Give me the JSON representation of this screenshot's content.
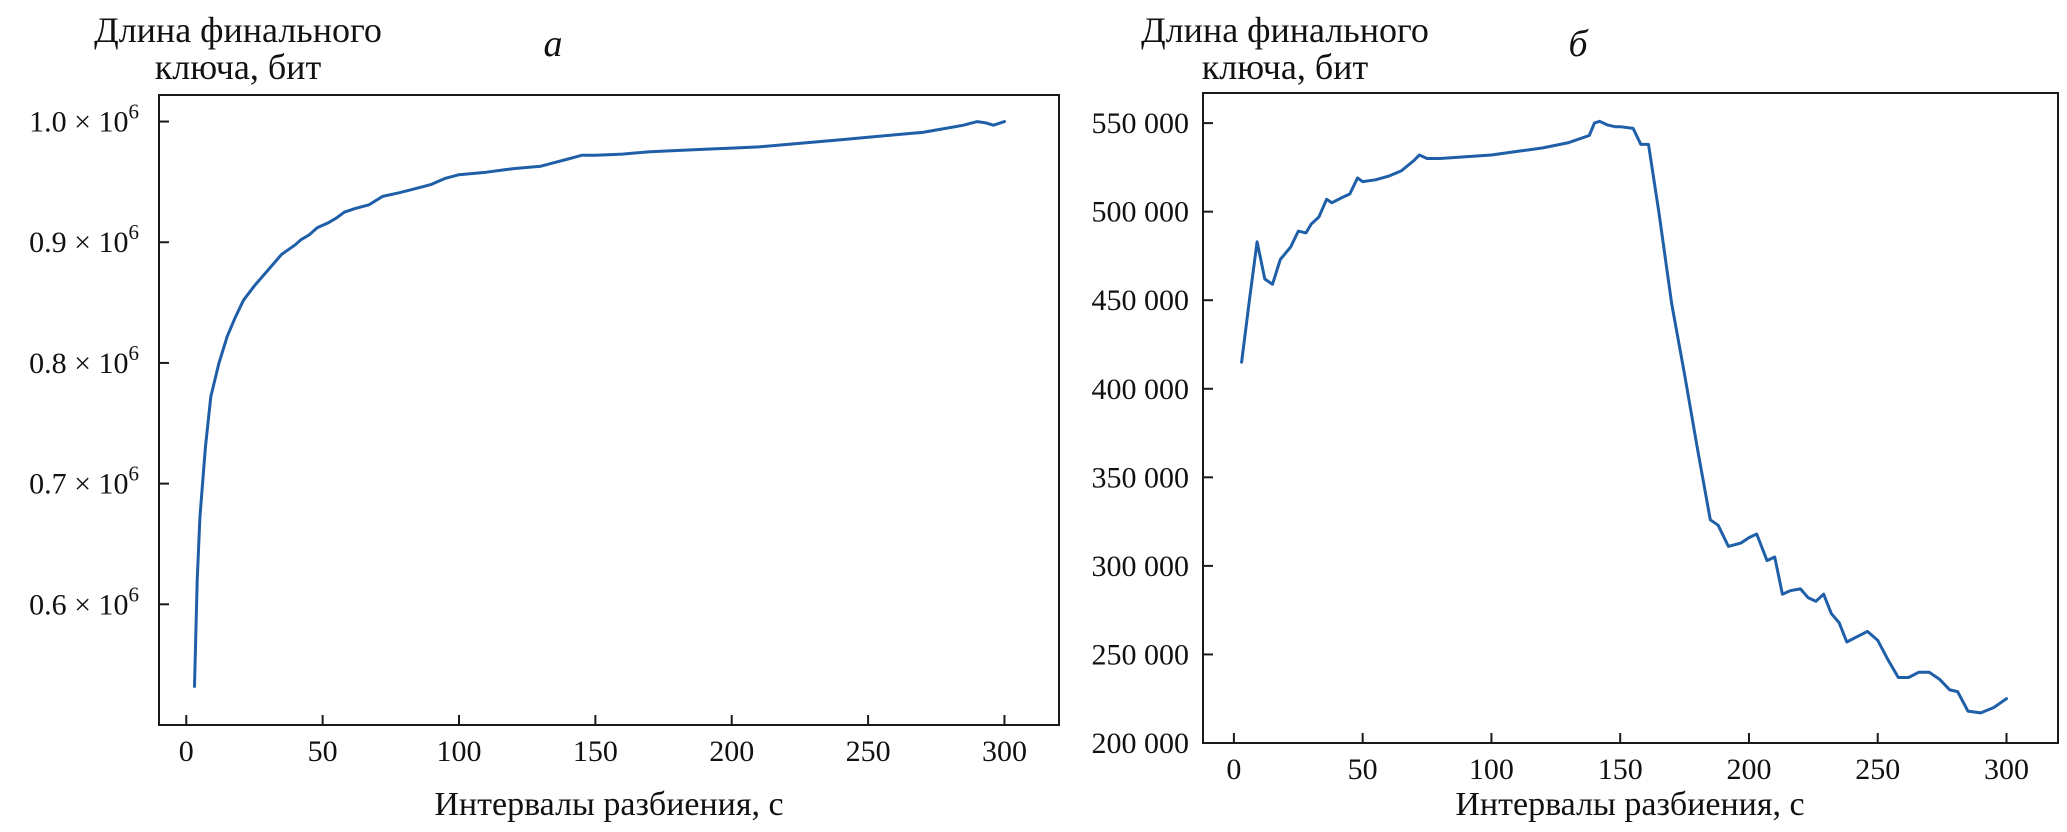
{
  "chart_data": [
    {
      "type": "line",
      "panel_label": "а",
      "ylabel_lines": [
        "Длина финального",
        "ключа, бит"
      ],
      "xlabel": "Интервалы разбиения, с",
      "xlim": [
        -10,
        320
      ],
      "ylim": [
        500000.0,
        1022000.0
      ],
      "xticks": [
        0,
        50,
        100,
        150,
        200,
        250,
        300
      ],
      "xtick_labels": [
        "0",
        "50",
        "100",
        "150",
        "200",
        "250",
        "300"
      ],
      "yticks": [
        600000.0,
        700000.0,
        800000.0,
        900000.0,
        1000000.0
      ],
      "ytick_mantissas": [
        "0.6 × 10",
        "0.7 × 10",
        "0.8 × 10",
        "0.9 × 10",
        "1.0 × 10"
      ],
      "ytick_exponent": "6",
      "grid": false,
      "series": [
        {
          "color": "#1f5fa8",
          "x": [
            3,
            4,
            5,
            7,
            9,
            12,
            15,
            18,
            21,
            25,
            30,
            35,
            40,
            42,
            45,
            48,
            52,
            55,
            58,
            62,
            67,
            72,
            78,
            85,
            90,
            95,
            100,
            110,
            120,
            130,
            135,
            140,
            145,
            150,
            160,
            170,
            180,
            190,
            200,
            210,
            220,
            230,
            240,
            250,
            260,
            270,
            275,
            280,
            285,
            290,
            293,
            296,
            300
          ],
          "values": [
            532000,
            620000,
            672000,
            730000,
            772000,
            800000,
            822000,
            838000,
            852000,
            864000,
            877000,
            890000,
            898000,
            902000,
            906000,
            912000,
            916000,
            920000,
            925000,
            928000,
            931000,
            938000,
            941000,
            945000,
            948000,
            953000,
            956000,
            958000,
            961000,
            963000,
            966000,
            969000,
            972000,
            972000,
            973000,
            975000,
            976000,
            977000,
            978000,
            979000,
            981000,
            983000,
            985000,
            987000,
            989000,
            991000,
            993000,
            995000,
            997000,
            1000000,
            999000,
            997000,
            1000000
          ]
        }
      ]
    },
    {
      "type": "line",
      "panel_label": "б",
      "ylabel_lines": [
        "Длина финального",
        "ключа, бит"
      ],
      "xlabel": "Интервалы разбиения, с",
      "xlim": [
        -12,
        320
      ],
      "ylim": [
        200000,
        567000
      ],
      "xticks": [
        0,
        50,
        100,
        150,
        200,
        250,
        300
      ],
      "xtick_labels": [
        "0",
        "50",
        "100",
        "150",
        "200",
        "250",
        "300"
      ],
      "yticks": [
        200000,
        250000,
        300000,
        350000,
        400000,
        450000,
        500000,
        550000
      ],
      "ytick_labels": [
        "200 000",
        "250 000",
        "300 000",
        "350 000",
        "400 000",
        "450 000",
        "500 000",
        "550 000"
      ],
      "grid": false,
      "series": [
        {
          "color": "#1f5fa8",
          "x": [
            3,
            6,
            9,
            12,
            15,
            18,
            22,
            25,
            28,
            30,
            33,
            36,
            38,
            42,
            45,
            48,
            50,
            55,
            60,
            65,
            70,
            72,
            75,
            80,
            90,
            100,
            110,
            120,
            130,
            138,
            140,
            142,
            145,
            148,
            150,
            155,
            158,
            161,
            165,
            170,
            175,
            180,
            185,
            188,
            192,
            197,
            200,
            203,
            207,
            210,
            213,
            216,
            220,
            223,
            226,
            229,
            232,
            235,
            238,
            242,
            246,
            250,
            254,
            258,
            262,
            266,
            270,
            274,
            278,
            281,
            285,
            290,
            295,
            300
          ],
          "values": [
            415000,
            450000,
            483000,
            462000,
            459000,
            473000,
            480000,
            489000,
            488000,
            493000,
            497000,
            507000,
            505000,
            508000,
            510000,
            519000,
            517000,
            518000,
            520000,
            523000,
            529000,
            532000,
            530000,
            530000,
            531000,
            532000,
            534000,
            536000,
            539000,
            543000,
            550000,
            551000,
            549000,
            548000,
            548000,
            547000,
            538000,
            538000,
            500000,
            448000,
            408000,
            366000,
            326000,
            323000,
            311000,
            313000,
            316000,
            318000,
            303000,
            305000,
            284000,
            286000,
            287000,
            282000,
            280000,
            284000,
            273000,
            268000,
            257000,
            260000,
            263000,
            258000,
            247000,
            237000,
            237000,
            240000,
            240000,
            236000,
            230000,
            229000,
            218000,
            217000,
            220000,
            225000
          ]
        }
      ]
    }
  ]
}
